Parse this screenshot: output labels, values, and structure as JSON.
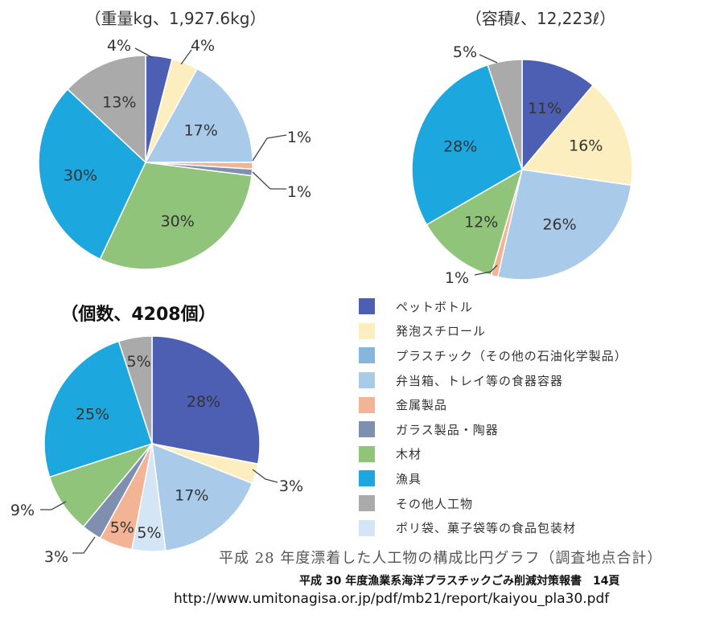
{
  "categories": [
    {
      "key": "pet",
      "label": "ペットボトル",
      "color": "#4c5fb2"
    },
    {
      "key": "foam",
      "label": "発泡スチロール",
      "color": "#fdeec0"
    },
    {
      "key": "plastic",
      "label": "プラスチック（その他の石油化学製品）",
      "color": "#86b6de"
    },
    {
      "key": "tray",
      "label": "弁当箱、トレイ等の食器容器",
      "color": "#a9cae8"
    },
    {
      "key": "metal",
      "label": "金属製品",
      "color": "#f2b494"
    },
    {
      "key": "glass",
      "label": "ガラス製品・陶器",
      "color": "#7e8fb0"
    },
    {
      "key": "wood",
      "label": "木材",
      "color": "#90c47a"
    },
    {
      "key": "fishing",
      "label": "漁具",
      "color": "#1da7df"
    },
    {
      "key": "other",
      "label": "その他人工物",
      "color": "#aaaaaa"
    },
    {
      "key": "bag",
      "label": "ポリ袋、菓子袋等の食品包装材",
      "color": "#d4e5f6"
    }
  ],
  "chart_data": [
    {
      "type": "pie",
      "title": "（重量kg、1,927.6kg）",
      "slices": [
        {
          "category": "pet",
          "value": 4,
          "label": "4%"
        },
        {
          "category": "foam",
          "value": 4,
          "label": "4%"
        },
        {
          "category": "tray",
          "value": 17,
          "label": "17%"
        },
        {
          "category": "metal",
          "value": 1,
          "label": "1%"
        },
        {
          "category": "glass",
          "value": 1,
          "label": "1%"
        },
        {
          "category": "wood",
          "value": 30,
          "label": "30%"
        },
        {
          "category": "fishing",
          "value": 30,
          "label": "30%"
        },
        {
          "category": "other",
          "value": 13,
          "label": "13%"
        }
      ]
    },
    {
      "type": "pie",
      "title": "（容積ℓ、12,223ℓ）",
      "slices": [
        {
          "category": "pet",
          "value": 11,
          "label": "11%"
        },
        {
          "category": "foam",
          "value": 16,
          "label": "16%"
        },
        {
          "category": "tray",
          "value": 26,
          "label": "26%"
        },
        {
          "category": "metal",
          "value": 1,
          "label": "1%"
        },
        {
          "category": "wood",
          "value": 12,
          "label": "12%"
        },
        {
          "category": "fishing",
          "value": 28,
          "label": "28%"
        },
        {
          "category": "other",
          "value": 5,
          "label": "5%"
        }
      ]
    },
    {
      "type": "pie",
      "title": "（個数、4208個）",
      "slices": [
        {
          "category": "pet",
          "value": 28,
          "label": "28%"
        },
        {
          "category": "foam",
          "value": 3,
          "label": "3%"
        },
        {
          "category": "tray",
          "value": 17,
          "label": "17%"
        },
        {
          "category": "bag",
          "value": 5,
          "label": "5%"
        },
        {
          "category": "metal",
          "value": 5,
          "label": "5%"
        },
        {
          "category": "glass",
          "value": 3,
          "label": "3%"
        },
        {
          "category": "wood",
          "value": 9,
          "label": "9%"
        },
        {
          "category": "fishing",
          "value": 25,
          "label": "25%"
        },
        {
          "category": "other",
          "value": 5,
          "label": "5%"
        }
      ]
    }
  ],
  "caption": "平成 28 年度漂着した人工物の構成比円グラフ（調査地点合計）",
  "source": "平成 30 年度漁業系海洋プラスチックごみ削減対策報書　14頁",
  "url": "http://www.umitonagisa.or.jp/pdf/mb21/report/kaiyou_pla30.pdf"
}
